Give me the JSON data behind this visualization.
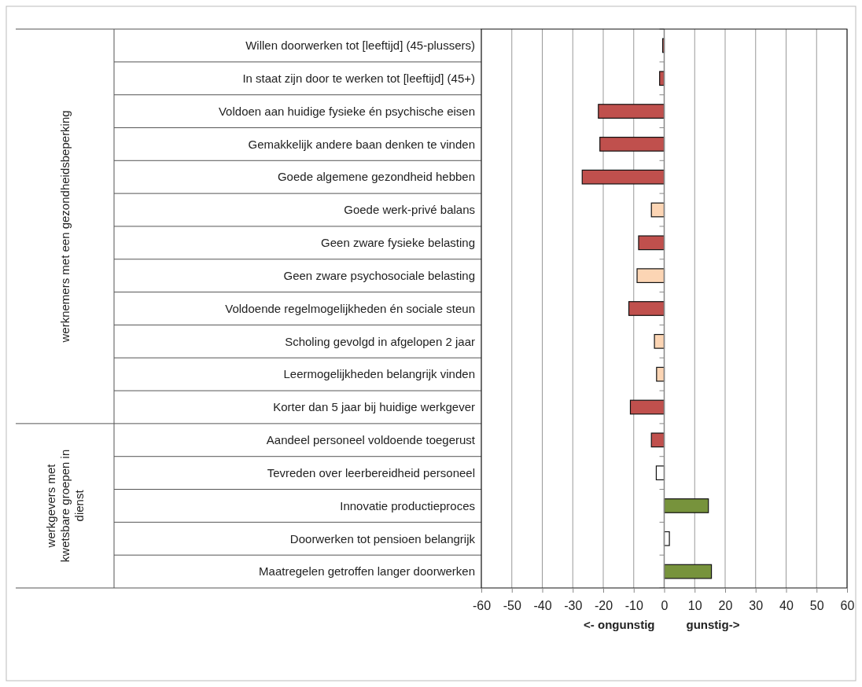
{
  "chart_data": {
    "type": "bar",
    "orientation": "horizontal",
    "categories": [
      "Willen doorwerken tot [leeftijd] (45-plussers)",
      "In staat zijn door te werken tot [leeftijd] (45+)",
      "Voldoen aan huidige fysieke én psychische eisen",
      "Gemakkelijk andere baan denken te vinden",
      "Goede algemene gezondheid hebben",
      "Goede werk-privé balans",
      "Geen zware fysieke belasting",
      "Geen zware psychosociale belasting",
      "Voldoende regelmogelijkheden én sociale steun",
      "Scholing gevolgd in afgelopen 2 jaar",
      "Leermogelijkheden belangrijk vinden",
      "Korter dan 5 jaar bij huidige werkgever",
      "Aandeel personeel voldoende toegerust",
      "Tevreden over leerbereidheid personeel",
      "Innovatie productieproces",
      "Doorwerken tot pensioen belangrijk",
      "Maatregelen getroffen langer doorwerken"
    ],
    "values": [
      -0.5,
      -1.5,
      -21.6,
      -21.1,
      -26.9,
      -4.2,
      -8.4,
      -8.9,
      -11.6,
      -3.2,
      -2.5,
      -11.1,
      -4.2,
      -2.6,
      14.5,
      1.7,
      15.5
    ],
    "colors": [
      "#c0504d",
      "#c0504d",
      "#c0504d",
      "#c0504d",
      "#c0504d",
      "#fcd5b4",
      "#c0504d",
      "#fcd5b4",
      "#c0504d",
      "#fcd5b4",
      "#fcd5b4",
      "#c0504d",
      "#c0504d",
      "#ffffff",
      "#77933c",
      "#ffffff",
      "#77933c"
    ],
    "xlim": [
      -60,
      60
    ],
    "xticks": [
      -60,
      -50,
      -40,
      -30,
      -20,
      -10,
      0,
      10,
      20,
      30,
      40,
      50,
      60
    ],
    "grid": "x",
    "annotations": [
      "werknemers met een gezondheidsbeperking",
      "werkgevers met kwetsbare groepen in dienst",
      "<- ongunstig",
      "gunstig->"
    ]
  }
}
